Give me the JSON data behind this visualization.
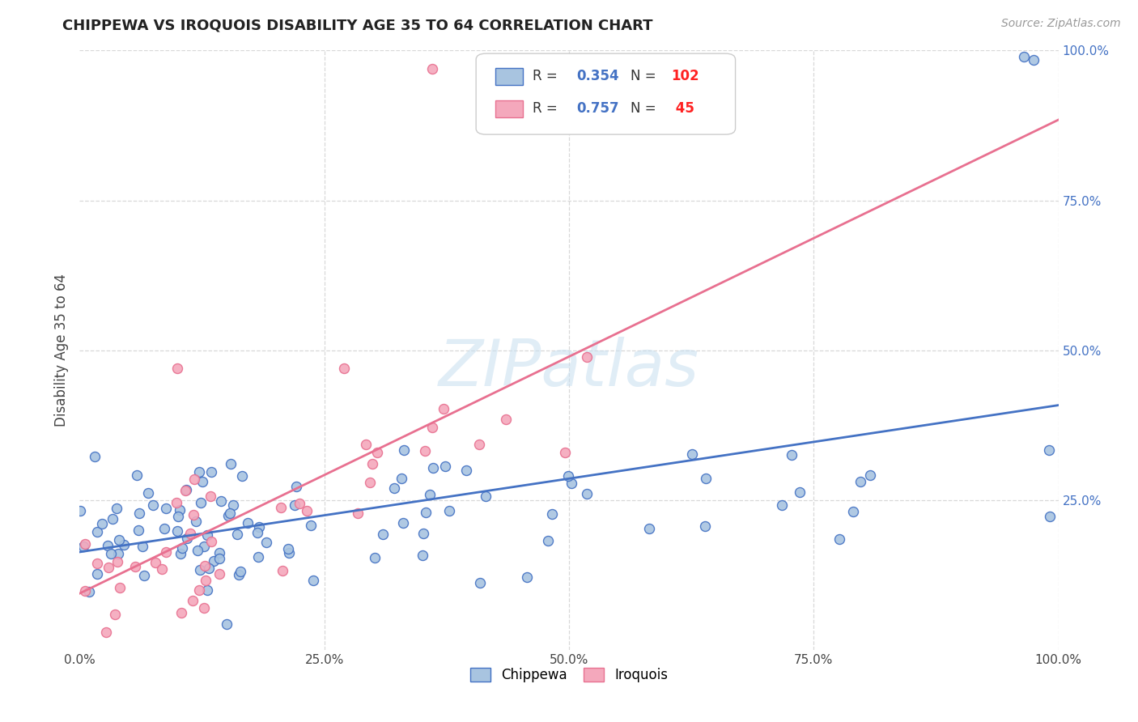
{
  "title": "CHIPPEWA VS IROQUOIS DISABILITY AGE 35 TO 64 CORRELATION CHART",
  "source": "Source: ZipAtlas.com",
  "ylabel": "Disability Age 35 to 64",
  "watermark": "ZIPatlas",
  "xlim": [
    0.0,
    1.0
  ],
  "ylim": [
    0.0,
    1.0
  ],
  "xtick_labels": [
    "0.0%",
    "25.0%",
    "50.0%",
    "75.0%",
    "100.0%"
  ],
  "xtick_vals": [
    0.0,
    0.25,
    0.5,
    0.75,
    1.0
  ],
  "right_ytick_labels": [
    "25.0%",
    "50.0%",
    "75.0%",
    "100.0%"
  ],
  "right_ytick_vals": [
    0.25,
    0.5,
    0.75,
    1.0
  ],
  "chippewa_color": "#a8c4e0",
  "iroquois_color": "#f4a8bc",
  "chippewa_R": 0.354,
  "chippewa_N": 102,
  "iroquois_R": 0.757,
  "iroquois_N": 45,
  "trend_chippewa_color": "#4472c4",
  "trend_iroquois_color": "#e87090",
  "grid_color": "#d8d8d8",
  "title_color": "#222222",
  "source_color": "#999999",
  "label_color": "#444444",
  "right_tick_color": "#4472c4"
}
